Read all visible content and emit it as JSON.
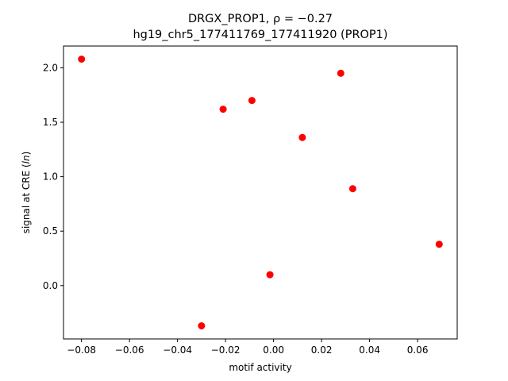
{
  "chart_data": {
    "type": "scatter",
    "title_prefix": "DRGX_PROP1, ",
    "title_rho": "ρ = −0.27",
    "subtitle": "hg19_chr5_177411769_177411920 (PROP1)",
    "xlabel": "motif activity",
    "ylabel_prefix": "signal at CRE (",
    "ylabel_italic": "ln",
    "ylabel_suffix": ")",
    "xlim": [
      -0.0875,
      0.0765
    ],
    "ylim": [
      -0.49,
      2.2
    ],
    "xticks": [
      -0.08,
      -0.06,
      -0.04,
      -0.02,
      0.0,
      0.02,
      0.04,
      0.06
    ],
    "xtick_labels": [
      "−0.08",
      "−0.06",
      "−0.04",
      "−0.02",
      "0.00",
      "0.02",
      "0.04",
      "0.06"
    ],
    "yticks": [
      0.0,
      0.5,
      1.0,
      1.5,
      2.0
    ],
    "ytick_labels": [
      "0.0",
      "0.5",
      "1.0",
      "1.5",
      "2.0"
    ],
    "grid": false,
    "marker_color": "#ff0000",
    "points": [
      {
        "x": -0.08,
        "y": 2.08
      },
      {
        "x": -0.021,
        "y": 1.62
      },
      {
        "x": -0.009,
        "y": 1.7
      },
      {
        "x": 0.028,
        "y": 1.95
      },
      {
        "x": 0.012,
        "y": 1.36
      },
      {
        "x": 0.033,
        "y": 0.89
      },
      {
        "x": 0.069,
        "y": 0.38
      },
      {
        "x": -0.0015,
        "y": 0.1
      },
      {
        "x": -0.03,
        "y": -0.37
      }
    ]
  }
}
